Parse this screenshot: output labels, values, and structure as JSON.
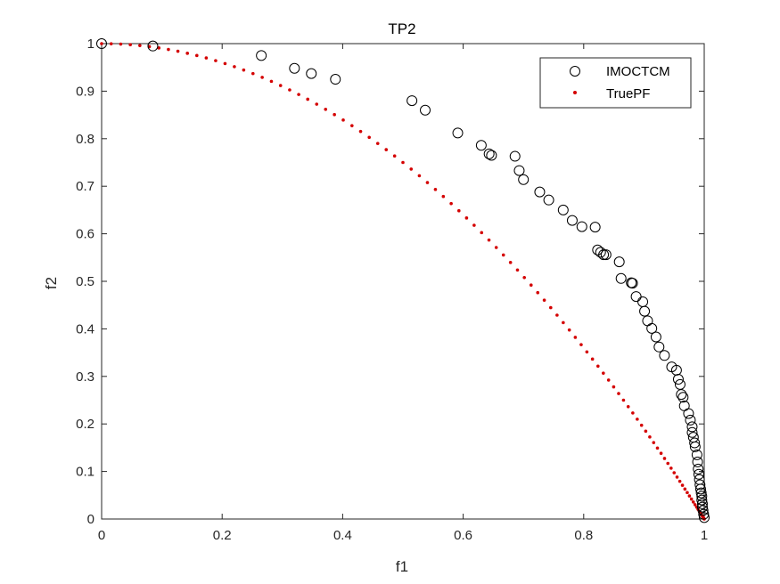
{
  "chart_data": {
    "type": "scatter",
    "title": "TP2",
    "xlabel": "f1",
    "ylabel": "f2",
    "xlim": [
      0,
      1
    ],
    "ylim": [
      0,
      1
    ],
    "xticks": [
      "0",
      "0.2",
      "0.4",
      "0.6",
      "0.8",
      "1"
    ],
    "yticks": [
      "0",
      "0.1",
      "0.2",
      "0.3",
      "0.4",
      "0.5",
      "0.6",
      "0.7",
      "0.8",
      "0.9",
      "1"
    ],
    "grid": false,
    "legend_position": "top-right",
    "series": [
      {
        "name": "IMOCTCM",
        "marker": "open-circle",
        "color": "#000000",
        "points": [
          [
            0.0,
            1.0
          ],
          [
            0.085,
            0.995
          ],
          [
            0.265,
            0.975
          ],
          [
            0.32,
            0.948
          ],
          [
            0.348,
            0.937
          ],
          [
            0.388,
            0.925
          ],
          [
            0.515,
            0.88
          ],
          [
            0.537,
            0.86
          ],
          [
            0.591,
            0.812
          ],
          [
            0.63,
            0.786
          ],
          [
            0.643,
            0.768
          ],
          [
            0.647,
            0.765
          ],
          [
            0.686,
            0.763
          ],
          [
            0.693,
            0.733
          ],
          [
            0.7,
            0.714
          ],
          [
            0.727,
            0.688
          ],
          [
            0.742,
            0.671
          ],
          [
            0.766,
            0.65
          ],
          [
            0.781,
            0.628
          ],
          [
            0.797,
            0.615
          ],
          [
            0.819,
            0.614
          ],
          [
            0.823,
            0.566
          ],
          [
            0.828,
            0.561
          ],
          [
            0.833,
            0.556
          ],
          [
            0.837,
            0.556
          ],
          [
            0.859,
            0.541
          ],
          [
            0.862,
            0.506
          ],
          [
            0.879,
            0.497
          ],
          [
            0.881,
            0.496
          ],
          [
            0.887,
            0.468
          ],
          [
            0.898,
            0.457
          ],
          [
            0.901,
            0.437
          ],
          [
            0.906,
            0.417
          ],
          [
            0.913,
            0.401
          ],
          [
            0.92,
            0.383
          ],
          [
            0.925,
            0.362
          ],
          [
            0.934,
            0.344
          ],
          [
            0.946,
            0.32
          ],
          [
            0.954,
            0.313
          ],
          [
            0.957,
            0.294
          ],
          [
            0.96,
            0.283
          ],
          [
            0.962,
            0.262
          ],
          [
            0.965,
            0.256
          ],
          [
            0.967,
            0.238
          ],
          [
            0.974,
            0.222
          ],
          [
            0.977,
            0.208
          ],
          [
            0.98,
            0.194
          ],
          [
            0.98,
            0.182
          ],
          [
            0.982,
            0.172
          ],
          [
            0.984,
            0.16
          ],
          [
            0.985,
            0.152
          ],
          [
            0.988,
            0.135
          ],
          [
            0.989,
            0.12
          ],
          [
            0.99,
            0.105
          ],
          [
            0.991,
            0.094
          ],
          [
            0.992,
            0.083
          ],
          [
            0.993,
            0.072
          ],
          [
            0.994,
            0.063
          ],
          [
            0.995,
            0.055
          ],
          [
            0.996,
            0.048
          ],
          [
            0.996,
            0.04
          ],
          [
            0.997,
            0.032
          ],
          [
            0.997,
            0.025
          ],
          [
            0.998,
            0.018
          ],
          [
            0.999,
            0.01
          ],
          [
            1.0,
            0.003
          ]
        ]
      },
      {
        "name": "TruePF",
        "marker": "dot",
        "color": "#d40000",
        "curve": "f2 = 1 - f1^2 (concave front)",
        "x_start": 0,
        "x_end": 1,
        "n_points": 100
      }
    ]
  }
}
